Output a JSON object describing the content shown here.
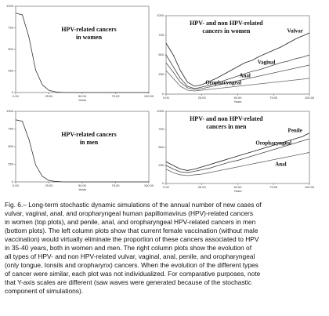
{
  "chart_data": [
    {
      "type": "line",
      "title": [
        "HPV-related cancers",
        "in women"
      ],
      "x_label": "Years",
      "x": [
        0,
        5,
        10,
        15,
        20,
        25,
        30,
        35,
        40,
        45,
        50,
        55,
        60,
        65,
        70,
        75,
        80,
        85,
        90,
        95,
        100
      ],
      "values": [
        920,
        900,
        640,
        260,
        90,
        25,
        8,
        2,
        0,
        0,
        0,
        0,
        0,
        0,
        0,
        0,
        0,
        0,
        0,
        0,
        0
      ],
      "color": "#333333",
      "xlim": [
        0,
        100
      ],
      "xticks": [
        {
          "value": 0,
          "label": "0.00"
        },
        {
          "value": 25,
          "label": "25.00"
        },
        {
          "value": 50,
          "label": "50.00"
        },
        {
          "value": 75,
          "label": "75.00"
        },
        {
          "value": 100,
          "label": "100.00"
        }
      ],
      "ylim": [
        0,
        1000
      ],
      "yticks": [
        0,
        250,
        500,
        750,
        1000
      ]
    },
    {
      "type": "line",
      "title": [
        "HPV- and non HPV-related",
        "cancers in women"
      ],
      "x_label": "Years",
      "x": [
        0,
        5,
        10,
        15,
        20,
        25,
        30,
        35,
        40,
        45,
        50,
        55,
        60,
        65,
        70,
        75,
        80,
        85,
        90,
        95,
        100
      ],
      "series": [
        {
          "name": "Vulvar",
          "color": "#222222",
          "values": [
            650,
            500,
            300,
            150,
            100,
            120,
            160,
            200,
            250,
            300,
            350,
            400,
            430,
            480,
            520,
            560,
            600,
            650,
            700,
            740,
            780
          ]
        },
        {
          "name": "Vaginal",
          "color": "#444444",
          "values": [
            500,
            350,
            200,
            100,
            70,
            90,
            110,
            140,
            170,
            200,
            230,
            260,
            290,
            310,
            340,
            370,
            400,
            420,
            450,
            470,
            500
          ]
        },
        {
          "name": "Anal",
          "color": "#555555",
          "values": [
            400,
            280,
            150,
            80,
            60,
            70,
            90,
            110,
            130,
            150,
            170,
            190,
            210,
            230,
            250,
            270,
            290,
            310,
            330,
            350,
            370
          ]
        },
        {
          "name": "Oropharyngeal",
          "color": "#666666",
          "values": [
            300,
            200,
            100,
            50,
            40,
            50,
            60,
            70,
            80,
            90,
            100,
            110,
            120,
            130,
            140,
            150,
            160,
            170,
            180,
            190,
            200
          ]
        }
      ],
      "xlim": [
        0,
        100
      ],
      "xticks": [
        {
          "value": 0,
          "label": "0.00"
        },
        {
          "value": 25,
          "label": "25.00"
        },
        {
          "value": 50,
          "label": "50.00"
        },
        {
          "value": 75,
          "label": "75.00"
        },
        {
          "value": 100,
          "label": "100.00"
        }
      ],
      "ylim": [
        0,
        1000
      ],
      "yticks": [
        0,
        250,
        500,
        750,
        1000
      ]
    },
    {
      "type": "line",
      "title": [
        "HPV-related cancers",
        "in men"
      ],
      "x_label": "Years",
      "x": [
        0,
        5,
        10,
        15,
        20,
        25,
        30,
        35,
        40,
        45,
        50,
        55,
        60,
        65,
        70,
        75,
        80,
        85,
        90,
        95,
        100
      ],
      "values": [
        880,
        860,
        600,
        240,
        80,
        20,
        6,
        1,
        0,
        0,
        0,
        0,
        0,
        0,
        0,
        0,
        0,
        0,
        0,
        0,
        0
      ],
      "color": "#333333",
      "xlim": [
        0,
        100
      ],
      "xticks": [
        {
          "value": 0,
          "label": "0.00"
        },
        {
          "value": 25,
          "label": "25.00"
        },
        {
          "value": 50,
          "label": "50.00"
        },
        {
          "value": 75,
          "label": "75.00"
        },
        {
          "value": 100,
          "label": "100.00"
        }
      ],
      "ylim": [
        0,
        1000
      ],
      "yticks": [
        0,
        250,
        500,
        750,
        1000
      ]
    },
    {
      "type": "line",
      "title": [
        "HPV- and non HPV-related",
        "cancers in men"
      ],
      "x_label": "Years",
      "x": [
        0,
        5,
        10,
        15,
        20,
        25,
        30,
        35,
        40,
        45,
        50,
        55,
        60,
        65,
        70,
        75,
        80,
        85,
        90,
        95,
        100
      ],
      "series": [
        {
          "name": "Penile",
          "color": "#222222",
          "values": [
            300,
            250,
            200,
            180,
            200,
            230,
            260,
            290,
            320,
            350,
            380,
            410,
            440,
            470,
            500,
            530,
            560,
            590,
            620,
            650,
            700
          ]
        },
        {
          "name": "Oropharyngeal",
          "color": "#444444",
          "values": [
            250,
            200,
            160,
            150,
            170,
            190,
            210,
            240,
            270,
            300,
            320,
            350,
            380,
            410,
            440,
            470,
            500,
            530,
            560,
            590,
            620
          ]
        },
        {
          "name": "Anal",
          "color": "#666666",
          "values": [
            200,
            150,
            120,
            110,
            120,
            130,
            150,
            170,
            190,
            210,
            230,
            250,
            270,
            290,
            310,
            330,
            350,
            370,
            390,
            410,
            430
          ]
        }
      ],
      "xlim": [
        0,
        100
      ],
      "xticks": [
        {
          "value": 0,
          "label": "0.00"
        },
        {
          "value": 25,
          "label": "25.00"
        },
        {
          "value": 50,
          "label": "50.00"
        },
        {
          "value": 75,
          "label": "75.00"
        },
        {
          "value": 100,
          "label": "100.00"
        }
      ],
      "ylim": [
        0,
        1000
      ],
      "yticks": [
        0,
        250,
        500,
        750,
        1000
      ]
    }
  ],
  "caption_lines": [
    "Fig. 6.– Long-term stochastic dynamic simulations of the annual number of new cases of",
    "vulvar, vaginal, anal, and oropharyngeal human papillomavirus (HPV)-related cancers",
    "in women (top plots), and penile, anal, and oropharyngeal HPV-related cancers in men",
    "(bottom plots). The left column plots show that current female vaccination (without male",
    "vaccination) would virtually eliminate the proportion of these cancers associated to HPV",
    "in 35-40 years, both in women and men. The right column plots show the evolution of",
    "all types of HPV- and non HPV-related vulvar, vaginal, anal, penile, and oropharyngeal",
    "(only tongue, tonsils and oropharynx) cancers. When the evolution of the different types",
    "of cancer were similar, each plot was not individualized. For comparative purposes, note",
    "that Y-axis scales are different (saw waves were generated because of the stochastic",
    "component of simulations)."
  ]
}
